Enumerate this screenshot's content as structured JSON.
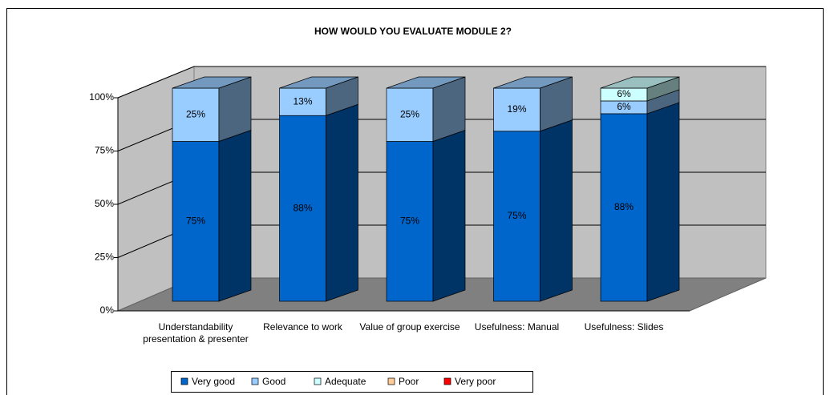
{
  "chart_data": {
    "type": "bar",
    "stacking": "percent",
    "title": "HOW WOULD YOU EVALUATE MODULE 2?",
    "categories": [
      "Understandability presentation & presenter",
      "Relevance to work",
      "Value of group exercise",
      "Usefulness: Manual",
      "Usefulness: Slides"
    ],
    "series": [
      {
        "name": "Very good",
        "color": "#0066cc",
        "values": [
          75,
          88,
          75,
          75,
          88
        ],
        "value_labels": [
          "75%",
          "88%",
          "75%",
          "75%",
          "88%"
        ]
      },
      {
        "name": "Good",
        "color": "#99ccff",
        "values": [
          25,
          13,
          25,
          19,
          6
        ],
        "value_labels": [
          "25%",
          "13%",
          "25%",
          "19%",
          "6%"
        ]
      },
      {
        "name": "Adequate",
        "color": "#ccffff",
        "values": [
          0,
          0,
          0,
          0,
          6
        ],
        "value_labels": [
          null,
          null,
          null,
          null,
          "6%"
        ]
      },
      {
        "name": "Poor",
        "color": "#ffcc99",
        "values": [
          0,
          0,
          0,
          0,
          0
        ]
      },
      {
        "name": "Very poor",
        "color": "#ff0000",
        "values": [
          0,
          0,
          0,
          0,
          0
        ]
      }
    ],
    "ylim": [
      0,
      100
    ],
    "yticks": [
      {
        "value": 0,
        "label": "0%"
      },
      {
        "value": 25,
        "label": "25%"
      },
      {
        "value": 50,
        "label": "50%"
      },
      {
        "value": 75,
        "label": "75%"
      },
      {
        "value": 100,
        "label": "100%"
      }
    ],
    "grid": true,
    "legend": "bottom"
  }
}
